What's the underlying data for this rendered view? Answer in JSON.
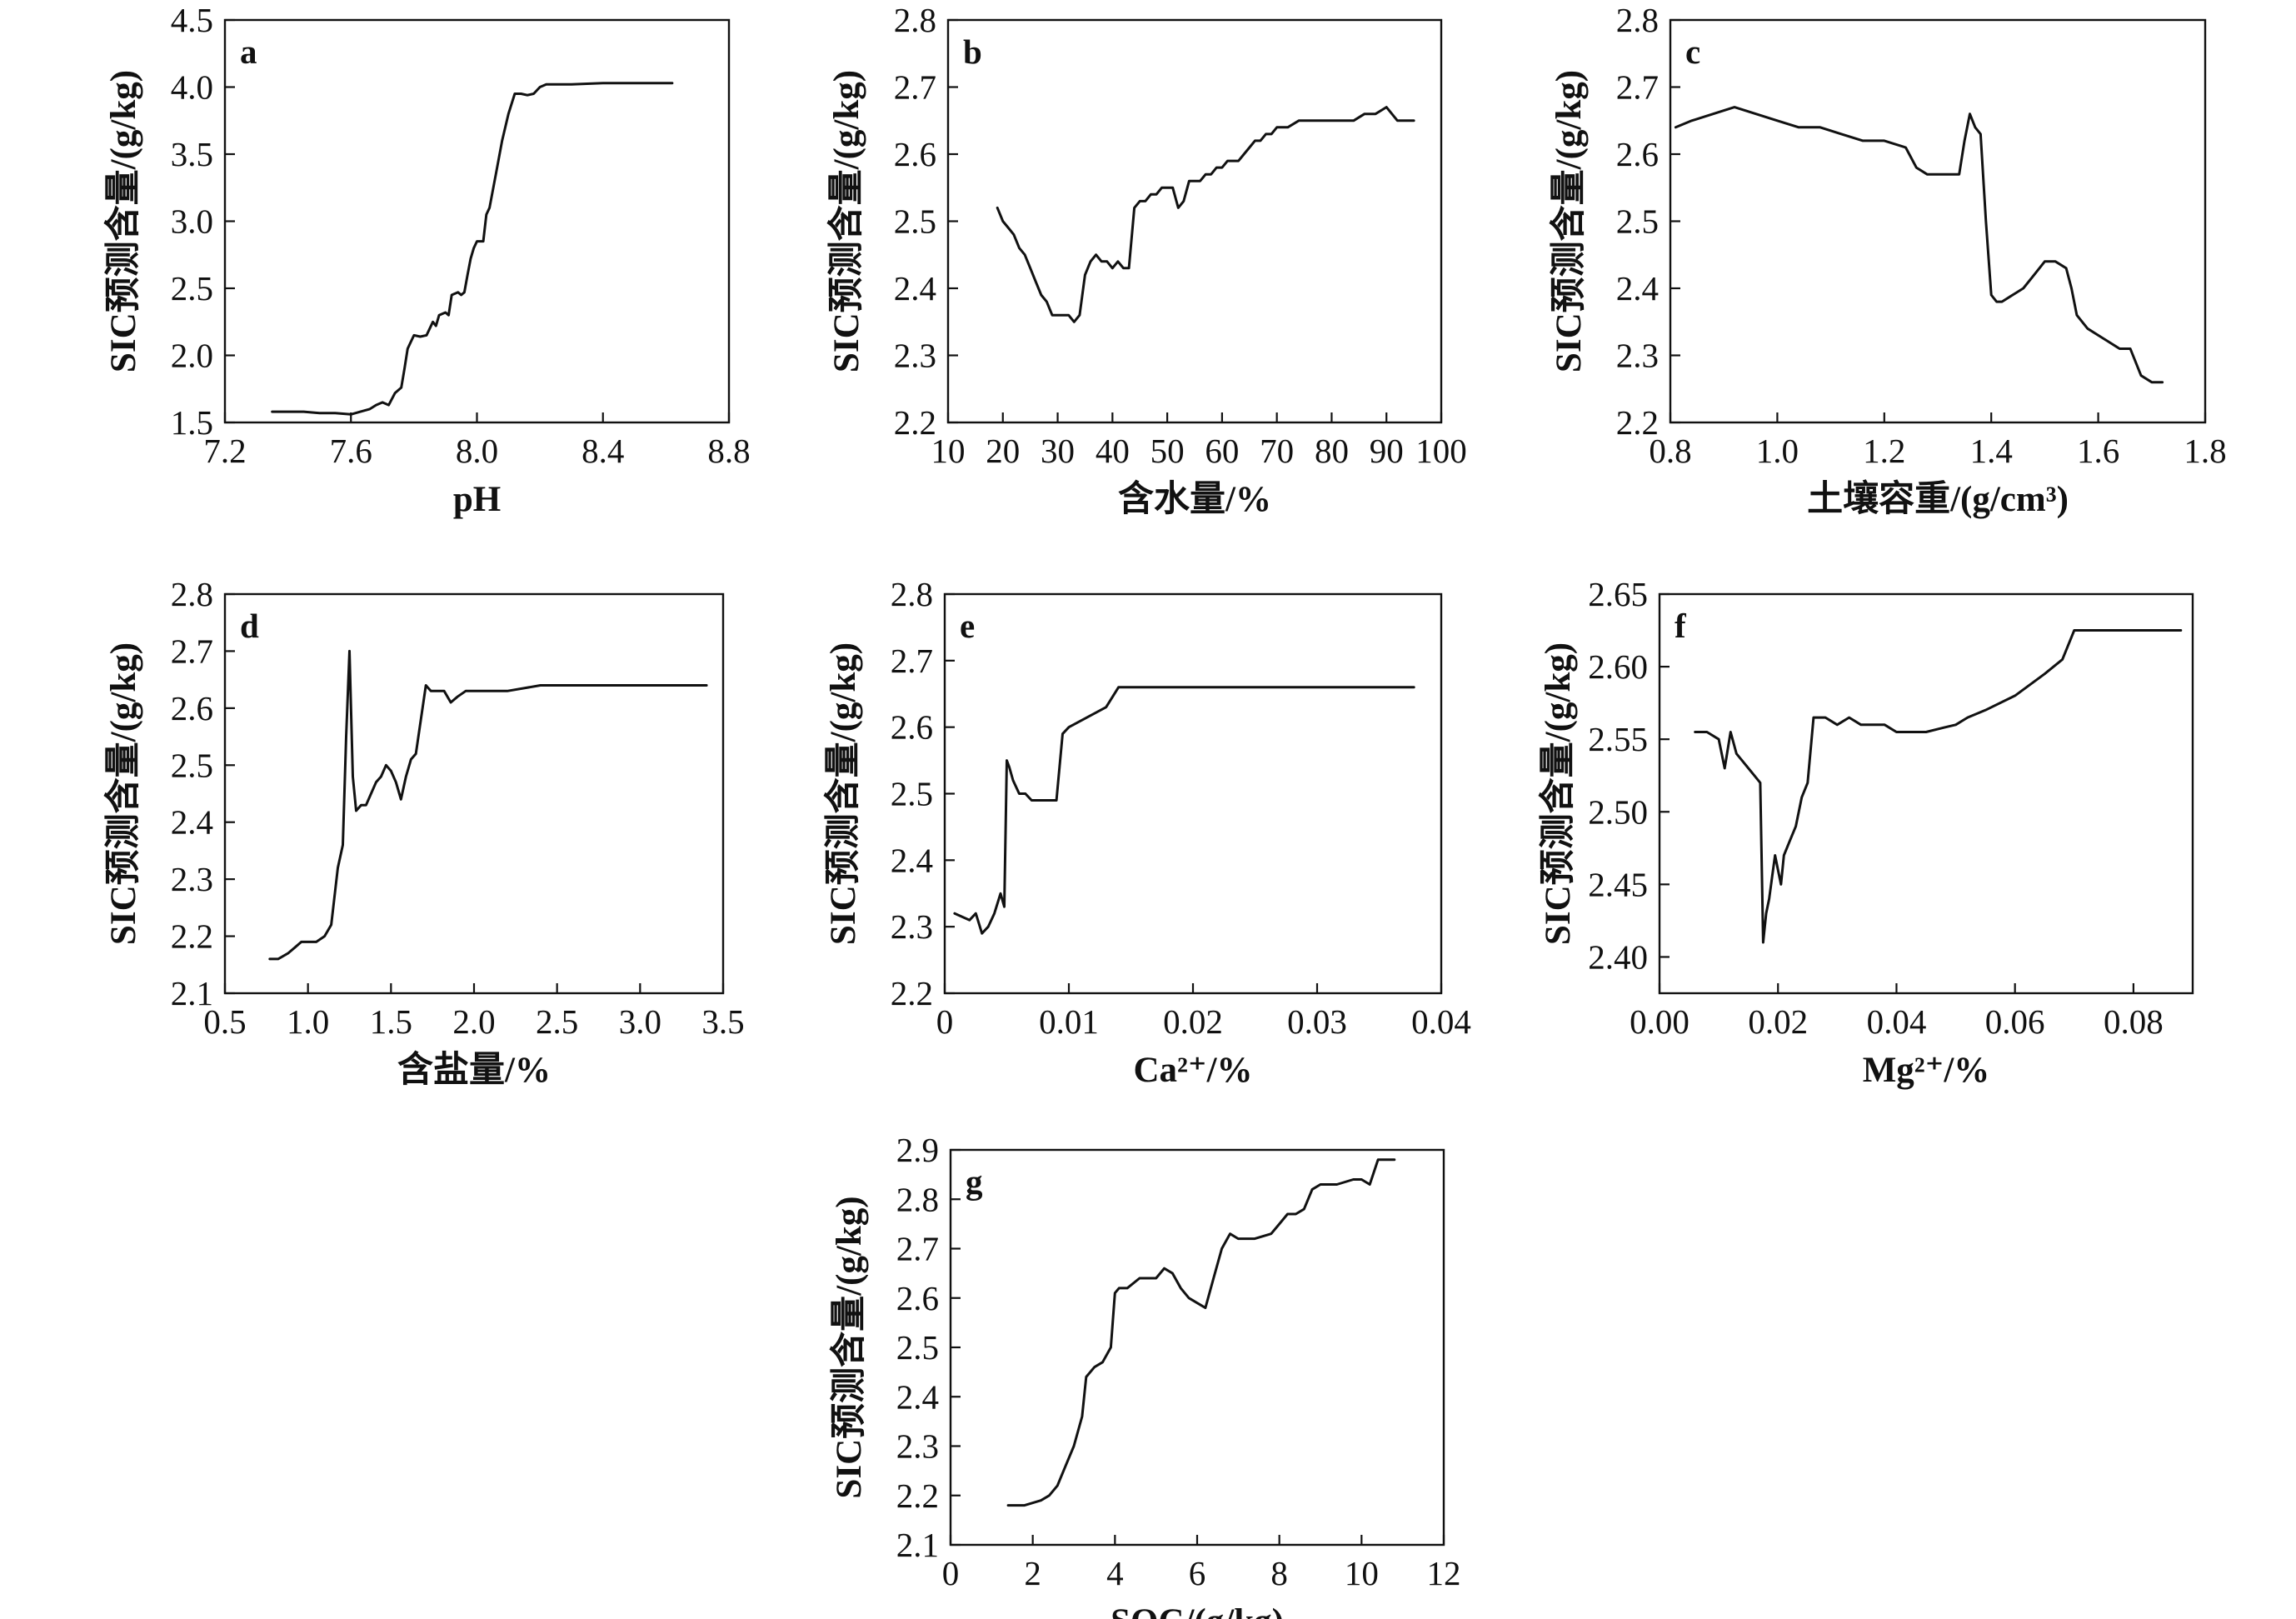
{
  "colors": {
    "line": "#111111",
    "axis": "#111111",
    "background": "#ffffff"
  },
  "chart_data": [
    {
      "id": "a",
      "type": "line",
      "letter": "a",
      "xlabel": "pH",
      "ylabel": "SIC预测含量/(g/kg)",
      "xlim": [
        7.2,
        8.8
      ],
      "ylim": [
        1.5,
        4.5
      ],
      "xticks": [
        "7.2",
        "7.6",
        "8.0",
        "8.4",
        "8.8"
      ],
      "yticks": [
        "1.5",
        "2.0",
        "2.5",
        "3.0",
        "3.5",
        "4.0",
        "4.5"
      ],
      "x": [
        7.35,
        7.45,
        7.5,
        7.55,
        7.6,
        7.63,
        7.66,
        7.68,
        7.7,
        7.72,
        7.74,
        7.76,
        7.77,
        7.78,
        7.79,
        7.8,
        7.82,
        7.84,
        7.86,
        7.87,
        7.88,
        7.9,
        7.91,
        7.92,
        7.94,
        7.95,
        7.96,
        7.97,
        7.98,
        7.99,
        8.0,
        8.02,
        8.03,
        8.04,
        8.06,
        8.08,
        8.1,
        8.12,
        8.14,
        8.16,
        8.18,
        8.2,
        8.22,
        8.24,
        8.3,
        8.4,
        8.5,
        8.6,
        8.62
      ],
      "y": [
        1.58,
        1.58,
        1.57,
        1.57,
        1.56,
        1.58,
        1.6,
        1.63,
        1.65,
        1.63,
        1.72,
        1.76,
        1.9,
        2.05,
        2.1,
        2.15,
        2.14,
        2.15,
        2.25,
        2.22,
        2.3,
        2.32,
        2.3,
        2.45,
        2.47,
        2.45,
        2.47,
        2.6,
        2.72,
        2.8,
        2.85,
        2.85,
        3.05,
        3.1,
        3.35,
        3.6,
        3.8,
        3.95,
        3.95,
        3.94,
        3.95,
        4.0,
        4.02,
        4.02,
        4.02,
        4.03,
        4.03,
        4.03,
        4.03
      ]
    },
    {
      "id": "b",
      "type": "line",
      "letter": "b",
      "xlabel": "含水量/%",
      "ylabel": "SIC预测含量/(g/kg)",
      "xlim": [
        10,
        100
      ],
      "ylim": [
        2.2,
        2.8
      ],
      "xticks": [
        "10",
        "20",
        "30",
        "40",
        "50",
        "60",
        "70",
        "80",
        "90",
        "100"
      ],
      "yticks": [
        "2.2",
        "2.3",
        "2.4",
        "2.5",
        "2.6",
        "2.7",
        "2.8"
      ],
      "x": [
        19,
        20,
        21,
        22,
        23,
        24,
        25,
        26,
        27,
        28,
        29,
        30,
        31,
        32,
        33,
        34,
        35,
        36,
        37,
        38,
        39,
        40,
        41,
        42,
        43,
        44,
        45,
        46,
        47,
        48,
        49,
        50,
        51,
        52,
        53,
        54,
        55,
        56,
        57,
        58,
        59,
        60,
        61,
        62,
        63,
        64,
        65,
        66,
        67,
        68,
        69,
        70,
        72,
        74,
        76,
        78,
        80,
        82,
        84,
        86,
        88,
        90,
        92,
        95
      ],
      "y": [
        2.52,
        2.5,
        2.49,
        2.48,
        2.46,
        2.45,
        2.43,
        2.41,
        2.39,
        2.38,
        2.36,
        2.36,
        2.36,
        2.36,
        2.35,
        2.36,
        2.42,
        2.44,
        2.45,
        2.44,
        2.44,
        2.43,
        2.44,
        2.43,
        2.43,
        2.52,
        2.53,
        2.53,
        2.54,
        2.54,
        2.55,
        2.55,
        2.55,
        2.52,
        2.53,
        2.56,
        2.56,
        2.56,
        2.57,
        2.57,
        2.58,
        2.58,
        2.59,
        2.59,
        2.59,
        2.6,
        2.61,
        2.62,
        2.62,
        2.63,
        2.63,
        2.64,
        2.64,
        2.65,
        2.65,
        2.65,
        2.65,
        2.65,
        2.65,
        2.66,
        2.66,
        2.67,
        2.65,
        2.65
      ]
    },
    {
      "id": "c",
      "type": "line",
      "letter": "c",
      "xlabel": "土壤容重/(g/cm³)",
      "ylabel": "SIC预测含量/(g/kg)",
      "xlim": [
        0.8,
        1.8
      ],
      "ylim": [
        2.2,
        2.8
      ],
      "xticks": [
        "0.8",
        "1.0",
        "1.2",
        "1.4",
        "1.6",
        "1.8"
      ],
      "yticks": [
        "2.2",
        "2.3",
        "2.4",
        "2.5",
        "2.6",
        "2.7",
        "2.8"
      ],
      "x": [
        0.81,
        0.84,
        0.88,
        0.92,
        0.96,
        1.0,
        1.04,
        1.08,
        1.12,
        1.16,
        1.2,
        1.24,
        1.26,
        1.28,
        1.3,
        1.32,
        1.34,
        1.35,
        1.36,
        1.37,
        1.38,
        1.39,
        1.4,
        1.41,
        1.42,
        1.44,
        1.46,
        1.48,
        1.5,
        1.52,
        1.54,
        1.55,
        1.56,
        1.58,
        1.6,
        1.62,
        1.64,
        1.66,
        1.68,
        1.7,
        1.72
      ],
      "y": [
        2.64,
        2.65,
        2.66,
        2.67,
        2.66,
        2.65,
        2.64,
        2.64,
        2.63,
        2.62,
        2.62,
        2.61,
        2.58,
        2.57,
        2.57,
        2.57,
        2.57,
        2.62,
        2.66,
        2.64,
        2.63,
        2.5,
        2.39,
        2.38,
        2.38,
        2.39,
        2.4,
        2.42,
        2.44,
        2.44,
        2.43,
        2.4,
        2.36,
        2.34,
        2.33,
        2.32,
        2.31,
        2.31,
        2.27,
        2.26,
        2.26
      ]
    },
    {
      "id": "d",
      "type": "line",
      "letter": "d",
      "xlabel": "含盐量/%",
      "ylabel": "SIC预测含量/(g/kg)",
      "xlim": [
        0.5,
        3.5
      ],
      "ylim": [
        2.1,
        2.8
      ],
      "xticks": [
        "0.5",
        "1.0",
        "1.5",
        "2.0",
        "2.5",
        "3.0",
        "3.5"
      ],
      "yticks": [
        "2.1",
        "2.2",
        "2.3",
        "2.4",
        "2.5",
        "2.6",
        "2.7",
        "2.8"
      ],
      "x": [
        0.77,
        0.82,
        0.88,
        0.92,
        0.96,
        1.0,
        1.05,
        1.1,
        1.14,
        1.18,
        1.21,
        1.23,
        1.25,
        1.27,
        1.29,
        1.32,
        1.35,
        1.38,
        1.41,
        1.44,
        1.47,
        1.5,
        1.53,
        1.56,
        1.59,
        1.62,
        1.65,
        1.68,
        1.71,
        1.74,
        1.78,
        1.82,
        1.86,
        1.9,
        1.95,
        2.0,
        2.1,
        2.2,
        2.4,
        2.6,
        2.8,
        3.0,
        3.2,
        3.3,
        3.4
      ],
      "y": [
        2.16,
        2.16,
        2.17,
        2.18,
        2.19,
        2.19,
        2.19,
        2.2,
        2.22,
        2.32,
        2.36,
        2.55,
        2.7,
        2.48,
        2.42,
        2.43,
        2.43,
        2.45,
        2.47,
        2.48,
        2.5,
        2.49,
        2.47,
        2.44,
        2.48,
        2.51,
        2.52,
        2.58,
        2.64,
        2.63,
        2.63,
        2.63,
        2.61,
        2.62,
        2.63,
        2.63,
        2.63,
        2.63,
        2.64,
        2.64,
        2.64,
        2.64,
        2.64,
        2.64,
        2.64
      ]
    },
    {
      "id": "e",
      "type": "line",
      "letter": "e",
      "xlabel": "Ca²⁺/%",
      "ylabel": "SIC预测含量/(g/kg)",
      "xlim": [
        0,
        0.04
      ],
      "ylim": [
        2.2,
        2.8
      ],
      "xticks": [
        "0",
        "0.01",
        "0.02",
        "0.03",
        "0.04"
      ],
      "yticks": [
        "2.2",
        "2.3",
        "2.4",
        "2.5",
        "2.6",
        "2.7",
        "2.8"
      ],
      "x": [
        0.0008,
        0.002,
        0.0025,
        0.003,
        0.0035,
        0.004,
        0.0045,
        0.0048,
        0.005,
        0.0052,
        0.0055,
        0.006,
        0.0065,
        0.007,
        0.008,
        0.009,
        0.0095,
        0.01,
        0.011,
        0.012,
        0.013,
        0.014,
        0.015,
        0.02,
        0.025,
        0.03,
        0.035,
        0.0378
      ],
      "y": [
        2.32,
        2.31,
        2.32,
        2.29,
        2.3,
        2.32,
        2.35,
        2.33,
        2.55,
        2.54,
        2.52,
        2.5,
        2.5,
        2.49,
        2.49,
        2.49,
        2.59,
        2.6,
        2.61,
        2.62,
        2.63,
        2.66,
        2.66,
        2.66,
        2.66,
        2.66,
        2.66,
        2.66
      ]
    },
    {
      "id": "f",
      "type": "line",
      "letter": "f",
      "xlabel": "Mg²⁺/%",
      "ylabel": "SIC预测含量/(g/kg)",
      "xlim": [
        0.0,
        0.09
      ],
      "ylim": [
        2.375,
        2.65
      ],
      "xticks": [
        "0.00",
        "0.02",
        "0.04",
        "0.06",
        "0.08"
      ],
      "yticks": [
        "2.40",
        "2.45",
        "2.50",
        "2.55",
        "2.60",
        "2.65"
      ],
      "x": [
        0.006,
        0.008,
        0.01,
        0.011,
        0.012,
        0.013,
        0.014,
        0.015,
        0.016,
        0.017,
        0.0175,
        0.018,
        0.0185,
        0.019,
        0.0195,
        0.02,
        0.0205,
        0.021,
        0.022,
        0.023,
        0.024,
        0.025,
        0.026,
        0.027,
        0.028,
        0.03,
        0.032,
        0.034,
        0.036,
        0.038,
        0.04,
        0.042,
        0.045,
        0.048,
        0.05,
        0.052,
        0.055,
        0.06,
        0.065,
        0.068,
        0.07,
        0.075,
        0.08,
        0.085,
        0.088
      ],
      "y": [
        2.555,
        2.555,
        2.55,
        2.53,
        2.555,
        2.54,
        2.535,
        2.53,
        2.525,
        2.52,
        2.41,
        2.43,
        2.44,
        2.455,
        2.47,
        2.46,
        2.45,
        2.47,
        2.48,
        2.49,
        2.51,
        2.52,
        2.565,
        2.565,
        2.565,
        2.56,
        2.565,
        2.56,
        2.56,
        2.56,
        2.555,
        2.555,
        2.555,
        2.558,
        2.56,
        2.565,
        2.57,
        2.58,
        2.595,
        2.605,
        2.625,
        2.625,
        2.625,
        2.625,
        2.625
      ]
    },
    {
      "id": "g",
      "type": "line",
      "letter": "g",
      "xlabel": "SOC/(g/kg)",
      "ylabel": "SIC预测含量/(g/kg)",
      "xlim": [
        0,
        12
      ],
      "ylim": [
        2.1,
        2.9
      ],
      "xticks": [
        "0",
        "2",
        "4",
        "6",
        "8",
        "10",
        "12"
      ],
      "yticks": [
        "2.1",
        "2.2",
        "2.3",
        "2.4",
        "2.5",
        "2.6",
        "2.7",
        "2.8",
        "2.9"
      ],
      "x": [
        1.4,
        1.8,
        2.2,
        2.4,
        2.6,
        2.8,
        3.0,
        3.2,
        3.3,
        3.5,
        3.7,
        3.9,
        4.0,
        4.1,
        4.3,
        4.6,
        4.8,
        5.0,
        5.2,
        5.4,
        5.6,
        5.8,
        6.0,
        6.2,
        6.4,
        6.6,
        6.8,
        7.0,
        7.4,
        7.8,
        8.0,
        8.2,
        8.4,
        8.6,
        8.8,
        9.0,
        9.4,
        9.8,
        10.0,
        10.2,
        10.4,
        10.6,
        10.8
      ],
      "y": [
        2.18,
        2.18,
        2.19,
        2.2,
        2.22,
        2.26,
        2.3,
        2.36,
        2.44,
        2.46,
        2.47,
        2.5,
        2.61,
        2.62,
        2.62,
        2.64,
        2.64,
        2.64,
        2.66,
        2.65,
        2.62,
        2.6,
        2.59,
        2.58,
        2.64,
        2.7,
        2.73,
        2.72,
        2.72,
        2.73,
        2.75,
        2.77,
        2.77,
        2.78,
        2.82,
        2.83,
        2.83,
        2.84,
        2.84,
        2.83,
        2.88,
        2.88,
        2.88
      ]
    }
  ]
}
